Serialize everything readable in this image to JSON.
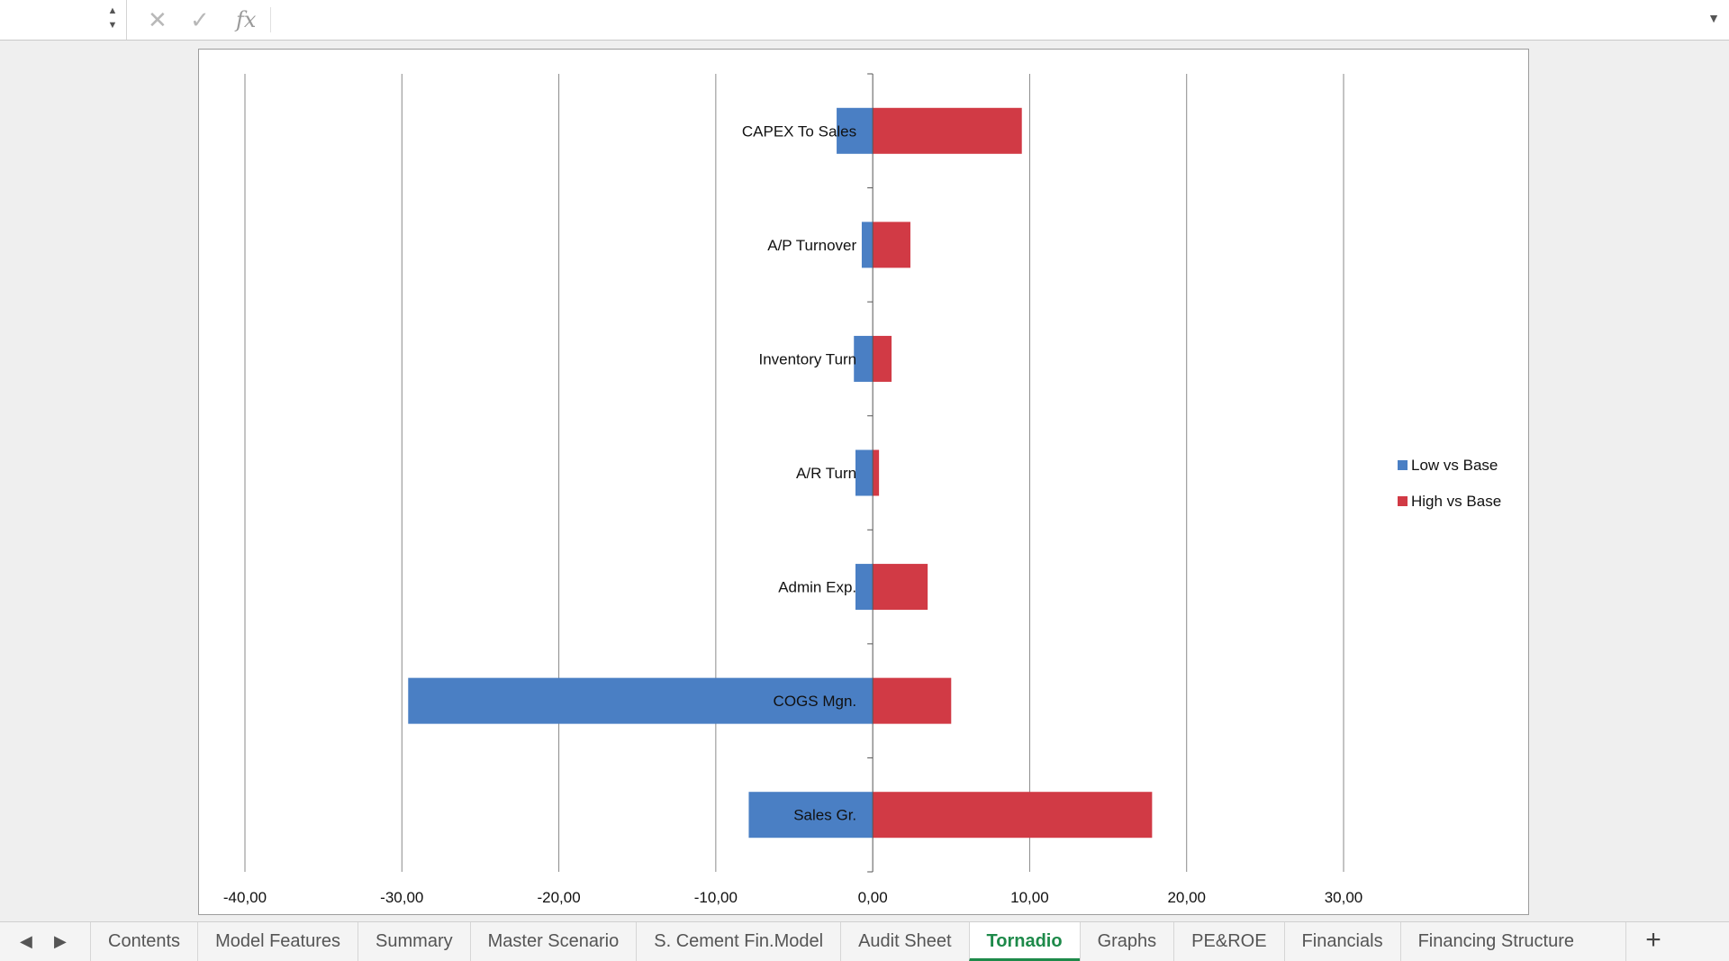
{
  "formula_bar": {
    "name_box_value": "",
    "formula_value": "",
    "fx_label": "fx"
  },
  "chart_data": {
    "type": "bar",
    "orientation": "horizontal",
    "categories": [
      "CAPEX To Sales",
      "A/P Turnover",
      "Inventory Turn",
      "A/R Turn",
      "Admin Exp.",
      "COGS Mgn.",
      "Sales Gr."
    ],
    "series": [
      {
        "name": "Low vs Base",
        "color": "#4a7fc4",
        "values": [
          -2.3,
          -0.7,
          -1.2,
          -1.1,
          -1.1,
          -29.6,
          -7.9
        ]
      },
      {
        "name": "High vs Base",
        "color": "#d13a45",
        "values": [
          9.5,
          2.4,
          1.2,
          0.4,
          3.5,
          5.0,
          17.8
        ]
      }
    ],
    "xlim": [
      -40,
      30
    ],
    "xticks": [
      -40,
      -30,
      -20,
      -10,
      0,
      10,
      20,
      30
    ],
    "xtick_labels": [
      "-40,00",
      "-30,00",
      "-20,00",
      "-10,00",
      "0,00",
      "10,00",
      "20,00",
      "30,00"
    ],
    "title": "",
    "xlabel": "",
    "ylabel": "",
    "grid": "vertical major gridlines",
    "legend_position": "right"
  },
  "sheet_tabs": {
    "tabs": [
      "Contents",
      "Model Features",
      "Summary",
      "Master Scenario",
      "S. Cement Fin.Model",
      "Audit Sheet",
      "Tornadio",
      "Graphs",
      "PE&ROE",
      "Financials",
      "Financing Structure"
    ],
    "active": "Tornadio",
    "add_label": "+"
  }
}
